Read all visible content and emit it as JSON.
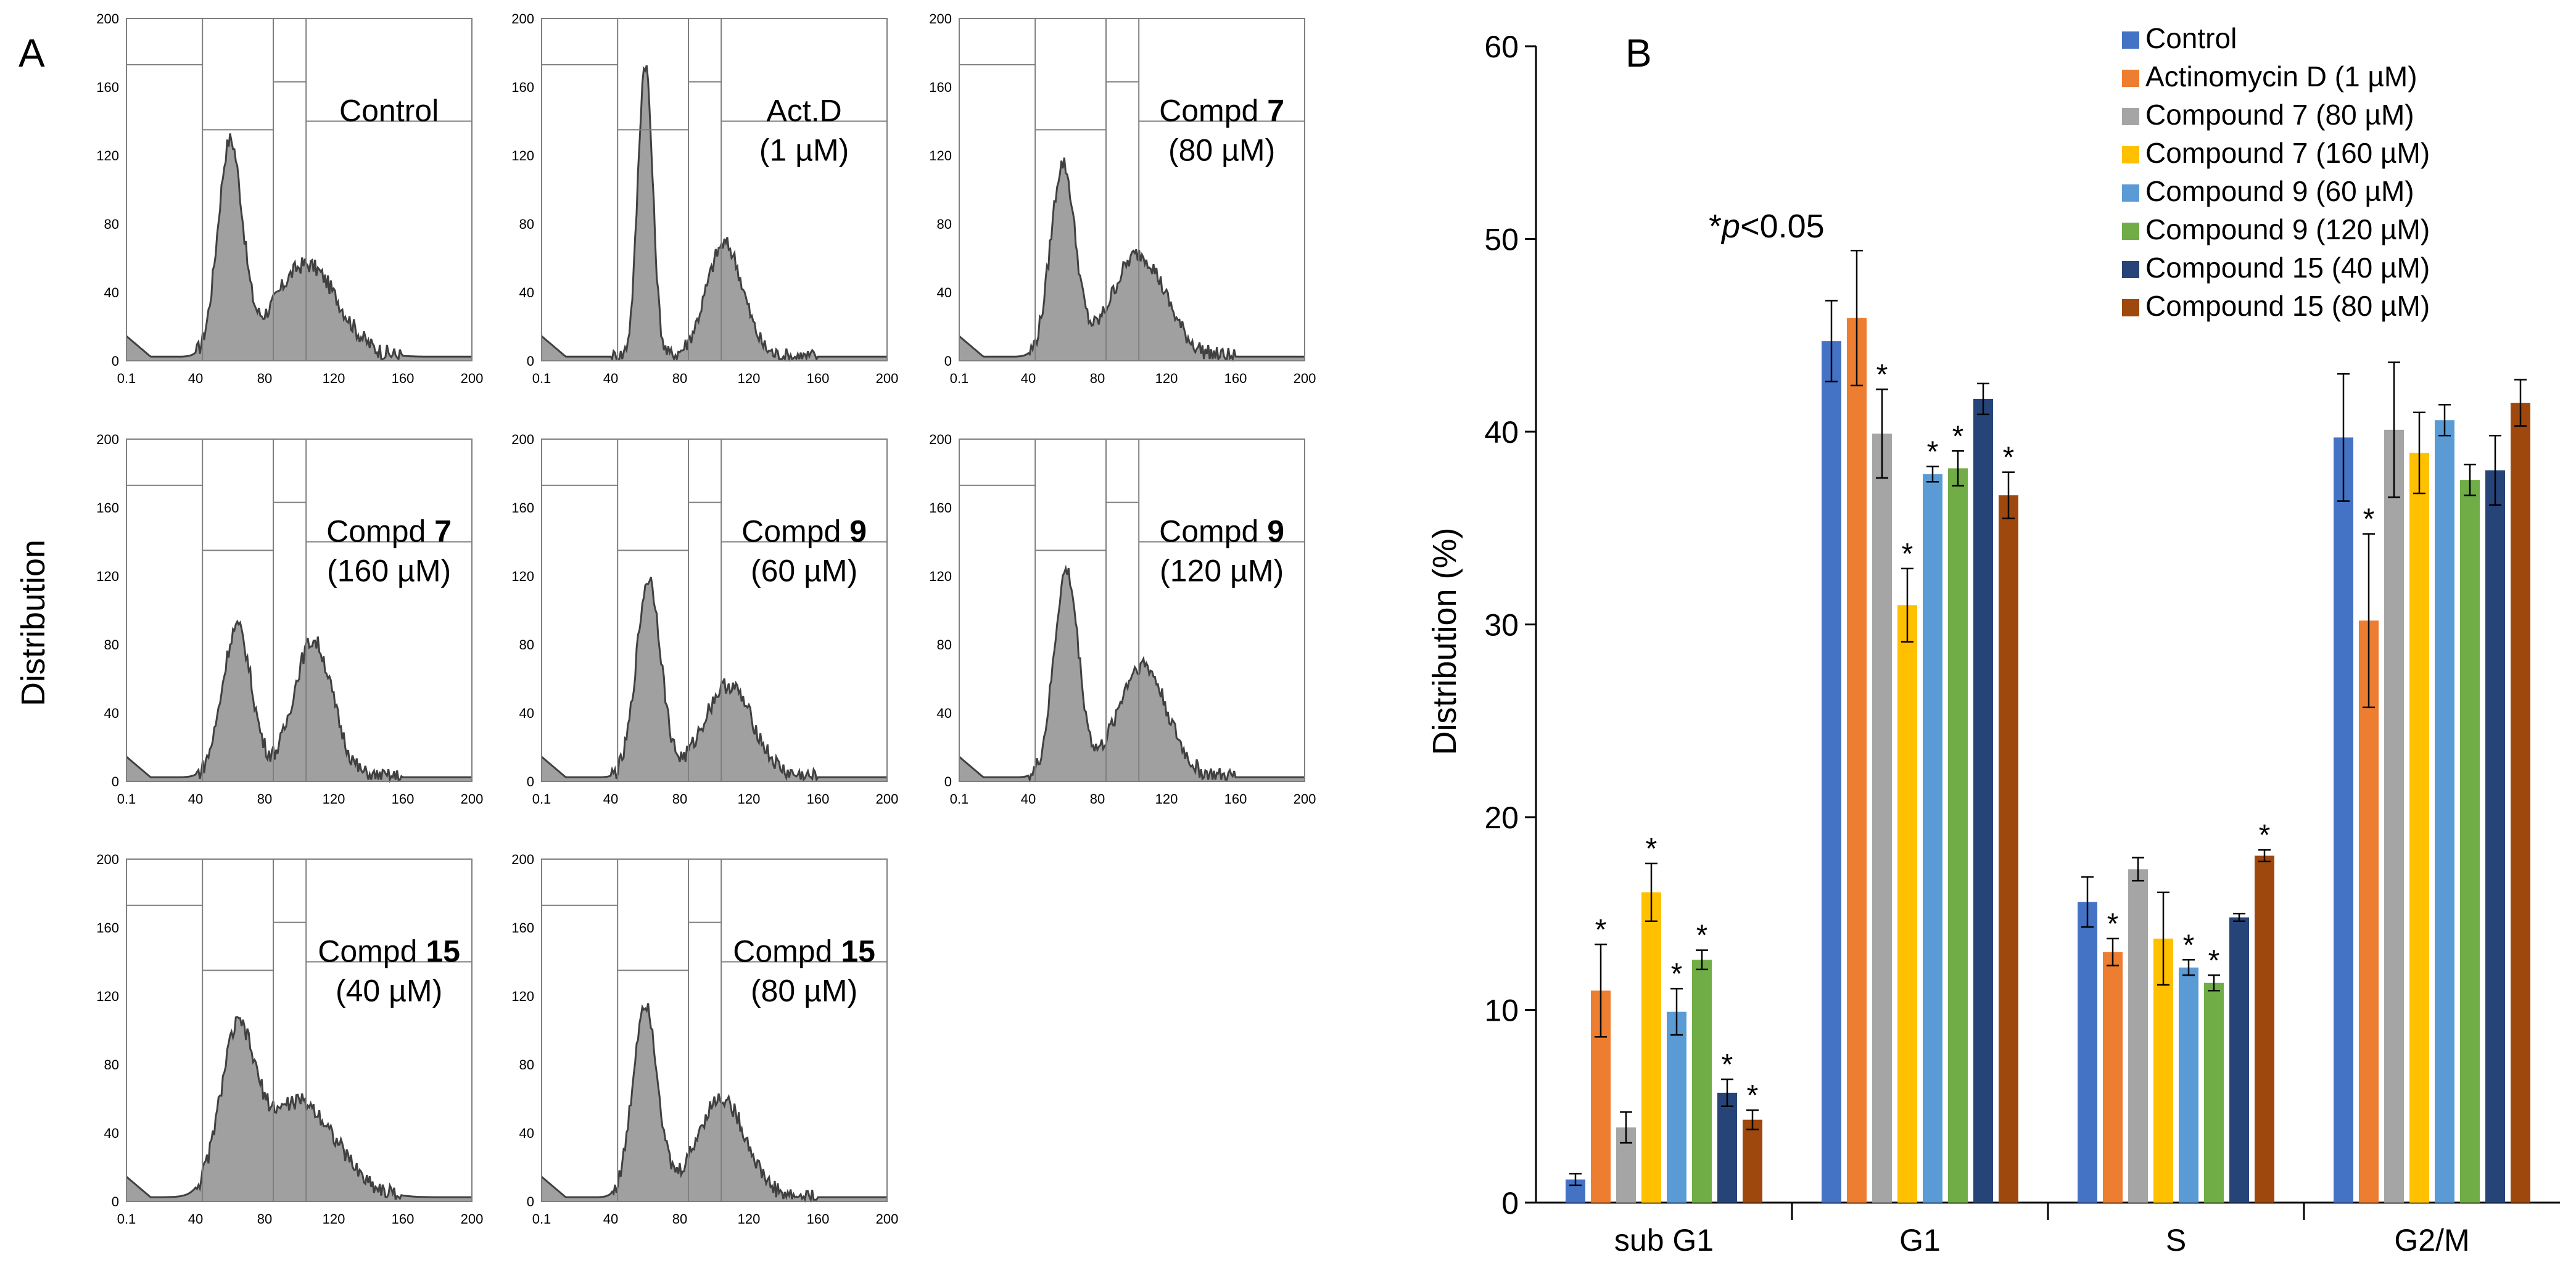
{
  "panel_a": {
    "label": "A",
    "ylabel": "Distribution",
    "x_ticks": [
      "0.1",
      "40",
      "80",
      "120",
      "160",
      "200"
    ],
    "y_ticks": [
      "0",
      "40",
      "80",
      "120",
      "160",
      "200"
    ],
    "histograms": [
      {
        "name": "Control",
        "line1": "Control",
        "line1_bold": "",
        "line2": ""
      },
      {
        "name": "Act.D",
        "line1": "Act.D",
        "line1_bold": "",
        "line2": "(1 µM)"
      },
      {
        "name": "Compd 7 80",
        "line1": "Compd ",
        "line1_bold": "7",
        "line2": "(80 µM)"
      },
      {
        "name": "Compd 7 160",
        "line1": "Compd ",
        "line1_bold": "7",
        "line2": "(160 µM)"
      },
      {
        "name": "Compd 9 60",
        "line1": "Compd ",
        "line1_bold": "9",
        "line2": "(60 µM)"
      },
      {
        "name": "Compd 9 120",
        "line1": "Compd ",
        "line1_bold": "9",
        "line2": "(120 µM)"
      },
      {
        "name": "Compd 15 40",
        "line1": "Compd ",
        "line1_bold": "15",
        "line2": "(40 µM)"
      },
      {
        "name": "Compd 15 80",
        "line1": "Compd ",
        "line1_bold": "15",
        "line2": "(80 µM)"
      }
    ]
  },
  "chart_data": {
    "type": "bar",
    "panel_label": "B",
    "title": "",
    "xlabel": "",
    "ylabel": "Distribution  (%)",
    "ylim": [
      0,
      60
    ],
    "yticks": [
      0,
      10,
      20,
      30,
      40,
      50,
      60
    ],
    "categories": [
      "sub G1",
      "G1",
      "S",
      "G2/M"
    ],
    "annotation": {
      "prefix": "*",
      "italic": "p",
      "suffix": "<0.05"
    },
    "legend_position": "top-right",
    "grid": false,
    "series": [
      {
        "name": "Control",
        "color": "#4472C4",
        "values": [
          1.2,
          44.7,
          15.6,
          39.7
        ],
        "errors": [
          0.3,
          2.1,
          1.3,
          3.3
        ],
        "sig": [
          false,
          false,
          false,
          false
        ]
      },
      {
        "name": "Actinomycin D (1 µM)",
        "color": "#ED7D31",
        "values": [
          11.0,
          45.9,
          13.0,
          30.2
        ],
        "errors": [
          2.4,
          3.5,
          0.7,
          4.5
        ],
        "sig": [
          true,
          false,
          true,
          true
        ]
      },
      {
        "name": "Compound 7 (80 µM)",
        "color": "#A5A5A5",
        "values": [
          3.9,
          39.9,
          17.3,
          40.1
        ],
        "errors": [
          0.8,
          2.3,
          0.6,
          3.5
        ],
        "sig": [
          false,
          true,
          false,
          false
        ]
      },
      {
        "name": "Compound 7 (160 µM)",
        "color": "#FFC000",
        "values": [
          16.1,
          31.0,
          13.7,
          38.9
        ],
        "errors": [
          1.5,
          1.9,
          2.4,
          2.1
        ],
        "sig": [
          true,
          true,
          false,
          false
        ]
      },
      {
        "name": "Compound 9 (60 µM)",
        "color": "#5B9BD5",
        "values": [
          9.9,
          37.8,
          12.2,
          40.6
        ],
        "errors": [
          1.2,
          0.4,
          0.4,
          0.8
        ],
        "sig": [
          true,
          true,
          true,
          false
        ]
      },
      {
        "name": "Compound 9 (120 µM)",
        "color": "#70AD47",
        "values": [
          12.6,
          38.1,
          11.4,
          37.5
        ],
        "errors": [
          0.5,
          0.9,
          0.4,
          0.8
        ],
        "sig": [
          true,
          true,
          true,
          false
        ]
      },
      {
        "name": "Compound 15 (40 µM)",
        "color": "#264478",
        "values": [
          5.7,
          41.7,
          14.8,
          38.0
        ],
        "errors": [
          0.7,
          0.8,
          0.2,
          1.8
        ],
        "sig": [
          true,
          false,
          false,
          false
        ]
      },
      {
        "name": "Compound 15 (80 µM)",
        "color": "#9E480E",
        "values": [
          4.3,
          36.7,
          18.0,
          41.5
        ],
        "errors": [
          0.5,
          1.2,
          0.3,
          1.2
        ],
        "sig": [
          true,
          true,
          true,
          false
        ]
      }
    ]
  }
}
